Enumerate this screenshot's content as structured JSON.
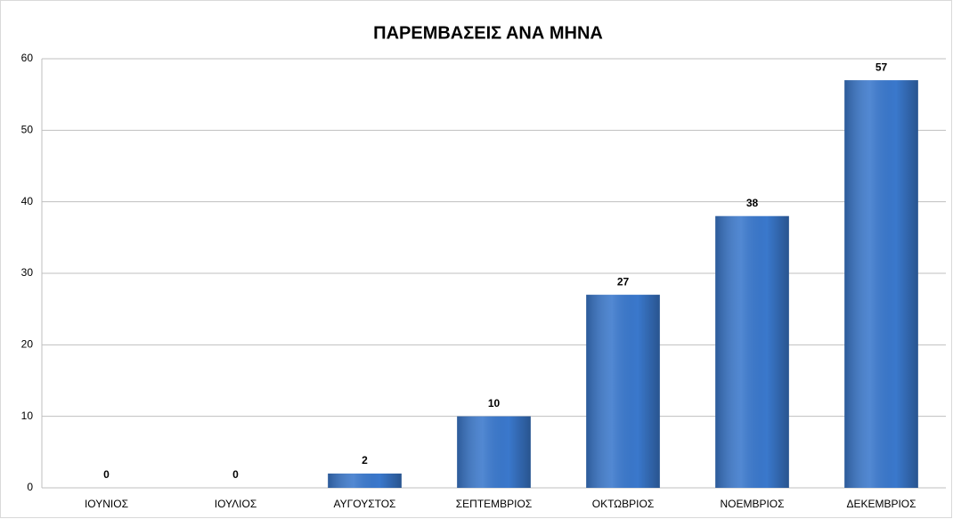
{
  "chart_data": {
    "type": "bar",
    "title": "ΠΑΡΕΜΒΑΣΕΙΣ ΑΝΑ ΜΗΝΑ",
    "categories": [
      "ΙΟΥΝΙΟΣ",
      "ΙΟΥΛΙΟΣ",
      "ΑΥΓΟΥΣΤΟΣ",
      "ΣΕΠΤΕΜΒΡΙΟΣ",
      "ΟΚΤΩΒΡΙΟΣ",
      "ΝΟΕΜΒΡΙΟΣ",
      "ΔΕΚΕΜΒΡΙΟΣ"
    ],
    "values": [
      0,
      0,
      2,
      10,
      27,
      38,
      57
    ],
    "color": "#3a78cc",
    "ylim": [
      0,
      60
    ],
    "yticks": [
      0,
      10,
      20,
      30,
      40,
      50,
      60
    ],
    "grid": true
  }
}
